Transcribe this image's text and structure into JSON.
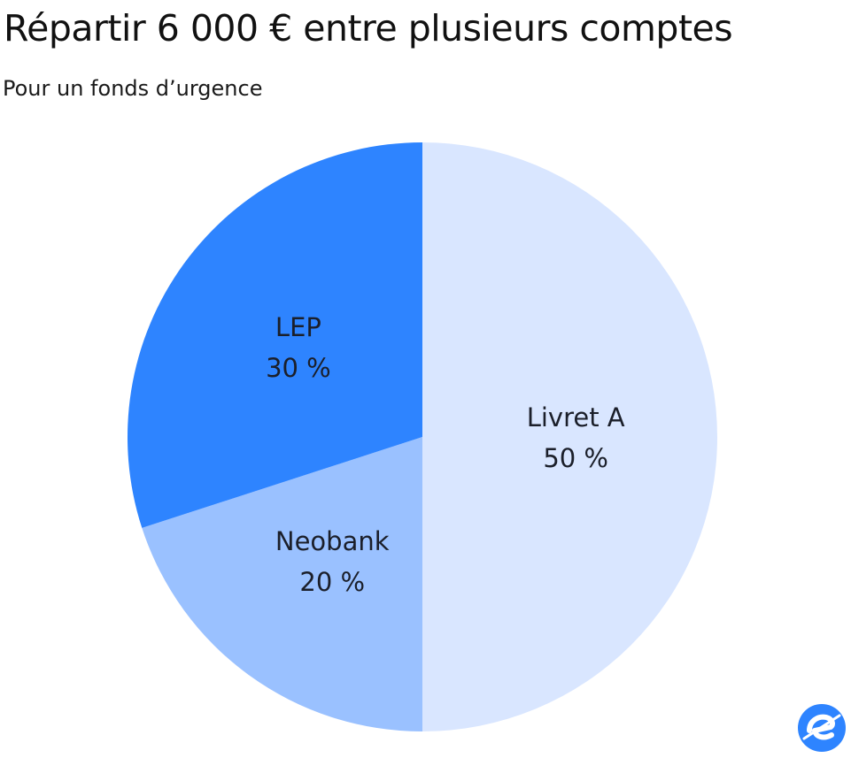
{
  "chart_data": {
    "type": "pie",
    "title": "Répartir 6 000 € entre plusieurs comptes",
    "subtitle": "Pour un fonds d’urgence",
    "slices": [
      {
        "label": "Livret A",
        "value": 50,
        "value_label": "50 %",
        "color": "#d9e6ff"
      },
      {
        "label": "Neobank",
        "value": 20,
        "value_label": "20 %",
        "color": "#9ac1ff"
      },
      {
        "label": "LEP",
        "value": 30,
        "value_label": "30 %",
        "color": "#2e84ff"
      }
    ],
    "start_angle": "12 o'clock",
    "direction": "clockwise",
    "legend": "none"
  },
  "brand": {
    "logo_icon": "e-logo-icon",
    "logo_color": "#2e84ff"
  }
}
